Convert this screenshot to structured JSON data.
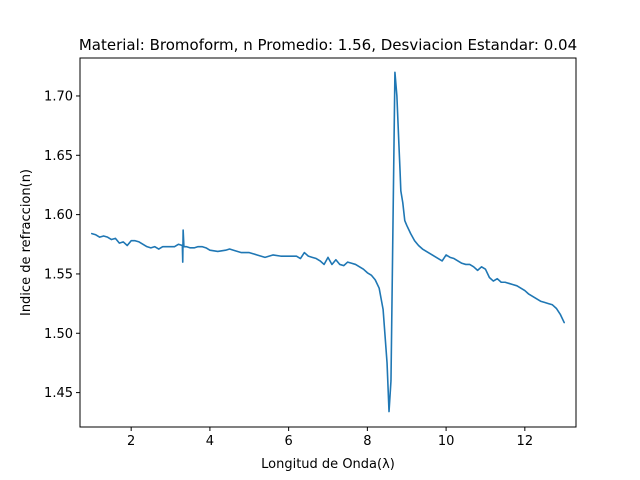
{
  "chart_data": {
    "type": "line",
    "title": "Material: Bromoform, n Promedio: 1.56, Desviacion Estandar: 0.04",
    "xlabel": "Longitud de Onda(λ)",
    "ylabel": "Indice de refraccion(n)",
    "xlim": [
      0.7,
      13.3
    ],
    "ylim": [
      1.421,
      1.732
    ],
    "grid": false,
    "line_color": "#1f77b4",
    "x_ticks": [
      2,
      4,
      6,
      8,
      10,
      12
    ],
    "y_ticks": [
      1.45,
      1.5,
      1.55,
      1.6,
      1.65,
      1.7
    ],
    "x_tick_labels": [
      "2",
      "4",
      "6",
      "8",
      "10",
      "12"
    ],
    "y_tick_labels": [
      "1.45",
      "1.50",
      "1.55",
      "1.60",
      "1.65",
      "1.70"
    ],
    "series": [
      {
        "x": [
          1.0,
          1.1,
          1.2,
          1.3,
          1.4,
          1.5,
          1.6,
          1.7,
          1.8,
          1.9,
          2.0,
          2.1,
          2.2,
          2.3,
          2.4,
          2.5,
          2.6,
          2.7,
          2.8,
          2.9,
          3.0,
          3.1,
          3.2,
          3.3,
          3.31,
          3.32,
          3.33,
          3.34,
          3.36,
          3.4,
          3.5,
          3.6,
          3.7,
          3.8,
          3.9,
          4.0,
          4.2,
          4.4,
          4.5,
          4.6,
          4.8,
          5.0,
          5.2,
          5.4,
          5.6,
          5.8,
          6.0,
          6.2,
          6.3,
          6.4,
          6.5,
          6.6,
          6.7,
          6.8,
          6.9,
          7.0,
          7.1,
          7.2,
          7.3,
          7.4,
          7.5,
          7.6,
          7.7,
          7.8,
          7.9,
          8.0,
          8.1,
          8.2,
          8.3,
          8.4,
          8.5,
          8.55,
          8.6,
          8.65,
          8.7,
          8.75,
          8.8,
          8.83,
          8.85,
          8.9,
          8.95,
          9.0,
          9.1,
          9.2,
          9.3,
          9.4,
          9.5,
          9.6,
          9.7,
          9.8,
          9.9,
          10.0,
          10.1,
          10.2,
          10.3,
          10.4,
          10.5,
          10.6,
          10.7,
          10.8,
          10.9,
          11.0,
          11.1,
          11.2,
          11.3,
          11.4,
          11.5,
          11.6,
          11.7,
          11.8,
          11.9,
          12.0,
          12.1,
          12.2,
          12.3,
          12.4,
          12.5,
          12.6,
          12.7,
          12.8,
          12.9,
          13.0
        ],
        "y": [
          1.584,
          1.583,
          1.581,
          1.582,
          1.581,
          1.579,
          1.58,
          1.576,
          1.577,
          1.574,
          1.578,
          1.578,
          1.577,
          1.575,
          1.573,
          1.572,
          1.573,
          1.571,
          1.573,
          1.573,
          1.573,
          1.573,
          1.575,
          1.574,
          1.56,
          1.587,
          1.58,
          1.573,
          1.573,
          1.573,
          1.572,
          1.572,
          1.573,
          1.573,
          1.572,
          1.57,
          1.569,
          1.57,
          1.571,
          1.57,
          1.568,
          1.568,
          1.566,
          1.564,
          1.566,
          1.565,
          1.565,
          1.565,
          1.563,
          1.568,
          1.565,
          1.564,
          1.563,
          1.561,
          1.558,
          1.564,
          1.558,
          1.562,
          1.558,
          1.557,
          1.56,
          1.559,
          1.558,
          1.556,
          1.554,
          1.551,
          1.549,
          1.545,
          1.538,
          1.52,
          1.475,
          1.434,
          1.46,
          1.59,
          1.72,
          1.7,
          1.66,
          1.637,
          1.62,
          1.61,
          1.595,
          1.591,
          1.584,
          1.578,
          1.574,
          1.571,
          1.569,
          1.567,
          1.565,
          1.563,
          1.561,
          1.566,
          1.564,
          1.563,
          1.561,
          1.559,
          1.558,
          1.558,
          1.556,
          1.553,
          1.556,
          1.554,
          1.547,
          1.544,
          1.546,
          1.543,
          1.543,
          1.542,
          1.541,
          1.54,
          1.538,
          1.536,
          1.533,
          1.531,
          1.529,
          1.527,
          1.526,
          1.525,
          1.524,
          1.521,
          1.516,
          1.509
        ]
      }
    ]
  }
}
